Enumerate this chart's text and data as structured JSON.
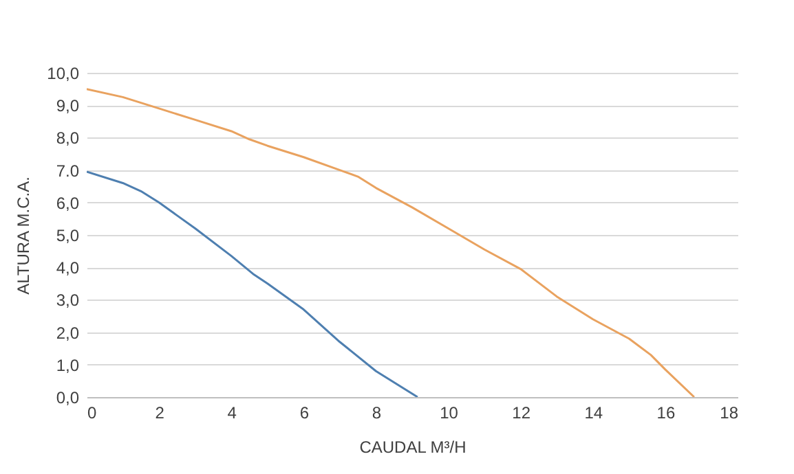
{
  "chart_data": {
    "type": "line",
    "xlabel": "CAUDAL M³/H",
    "ylabel": "ALTURA M.C.A.",
    "series": [
      {
        "color": "#4e7fb0",
        "x": [
          0,
          1,
          1.5,
          2,
          3,
          4,
          4.6,
          5,
          6,
          7,
          8,
          9.15
        ],
        "values": [
          6.95,
          6.6,
          6.35,
          6.0,
          5.2,
          4.35,
          3.8,
          3.5,
          2.7,
          1.7,
          0.8,
          0
        ]
      },
      {
        "color": "#e9a25f",
        "x": [
          0,
          1,
          2,
          3,
          4,
          4.5,
          5,
          6,
          7,
          7.5,
          8,
          9,
          10,
          11,
          12,
          13,
          14,
          15,
          15.6,
          16,
          16.8
        ],
        "values": [
          9.5,
          9.25,
          8.9,
          8.55,
          8.2,
          7.95,
          7.75,
          7.4,
          7.0,
          6.8,
          6.45,
          5.85,
          5.2,
          4.55,
          3.95,
          3.1,
          2.4,
          1.8,
          1.3,
          0.85,
          0
        ]
      }
    ],
    "xlim": [
      0,
      18
    ],
    "xticks": [
      0,
      2,
      4,
      6,
      8,
      10,
      12,
      14,
      16,
      18
    ],
    "ylim": [
      0,
      10
    ],
    "yticks": [
      {
        "value": 0,
        "label": "0,0"
      },
      {
        "value": 1,
        "label": "1,0"
      },
      {
        "value": 2,
        "label": "2,0"
      },
      {
        "value": 3,
        "label": "3,0"
      },
      {
        "value": 4,
        "label": "4,0"
      },
      {
        "value": 5,
        "label": "5,0"
      },
      {
        "value": 6,
        "label": "6,0"
      },
      {
        "value": 7,
        "label": "7.0"
      },
      {
        "value": 8,
        "label": "8,0"
      },
      {
        "value": 9,
        "label": "9,0"
      },
      {
        "value": 10,
        "label": "10,0"
      }
    ],
    "grid": "y",
    "marker": "none",
    "line_style": "solid"
  }
}
